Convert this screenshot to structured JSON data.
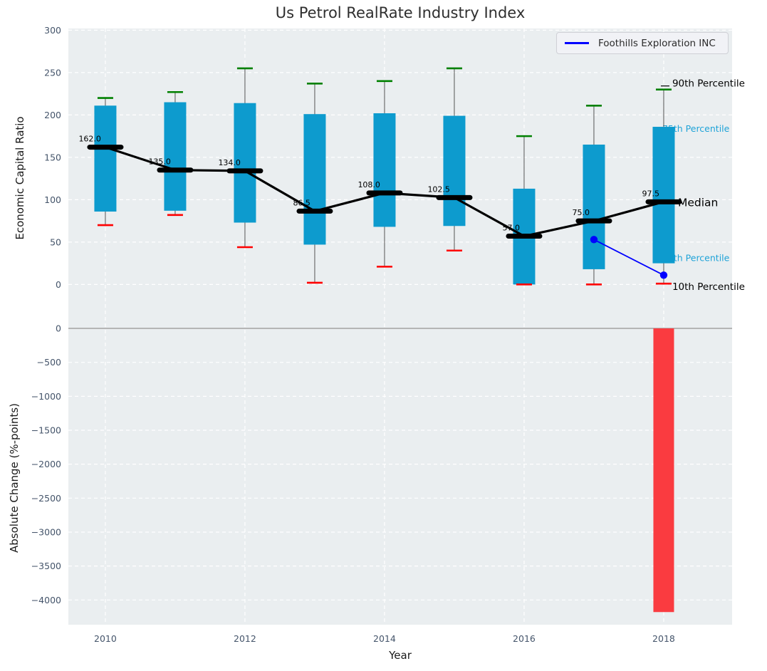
{
  "title": "Us Petrol RealRate Industry Index",
  "legend": {
    "label": "Foothills Exploration INC"
  },
  "chart_data": {
    "type": "box+bar",
    "x": [
      2010,
      2011,
      2012,
      2013,
      2014,
      2015,
      2016,
      2017,
      2018
    ],
    "x_ticks": [
      2010,
      2012,
      2014,
      2016,
      2018
    ],
    "xlabel": "Year",
    "xlim": [
      2009.47,
      2018.98
    ],
    "top_panel": {
      "ylabel": "Economic Capital Ratio",
      "ylim": [
        -35,
        302
      ],
      "y_ticks": [
        0,
        50,
        100,
        150,
        200,
        250,
        300
      ],
      "series": [
        {
          "name": "90th Percentile",
          "values": [
            220,
            227,
            255,
            237,
            240,
            255,
            175,
            211,
            230
          ]
        },
        {
          "name": "75th Percentile",
          "values": [
            211,
            215,
            214,
            201,
            202,
            199,
            113,
            165,
            186
          ]
        },
        {
          "name": "Median",
          "values": [
            162.0,
            135.0,
            134.0,
            86.5,
            108.0,
            102.5,
            57.0,
            75.0,
            97.5
          ]
        },
        {
          "name": "25th Percentile",
          "values": [
            86,
            87,
            73,
            47,
            68,
            69,
            0,
            18,
            25
          ]
        },
        {
          "name": "10th Percentile",
          "values": [
            70,
            82,
            44,
            2,
            21,
            40,
            0,
            0,
            1
          ]
        }
      ],
      "median_value_labels": [
        "162.0",
        "135.0",
        "134.0",
        "86.5",
        "108.0",
        "102.5",
        "57.0",
        "75.0",
        "97.5"
      ],
      "company_line": {
        "name": "Foothills Exploration INC",
        "x": [
          2017,
          2018
        ],
        "y": [
          53,
          11
        ]
      },
      "annotations": [
        {
          "text": "90th Percentile",
          "anchor": "p90",
          "style": "black"
        },
        {
          "text": "75th Percentile",
          "anchor": "p75",
          "style": "cyan"
        },
        {
          "text": "Median",
          "anchor": "median",
          "style": "median"
        },
        {
          "text": "25th Percentile",
          "anchor": "p25",
          "style": "cyan"
        },
        {
          "text": "10th Percentile",
          "anchor": "p10",
          "style": "black"
        }
      ]
    },
    "bottom_panel": {
      "ylabel": "Absolute Change (%-points)",
      "ylim": [
        -4364,
        210
      ],
      "y_ticks": [
        0,
        -500,
        -1000,
        -1500,
        -2000,
        -2500,
        -3000,
        -3500,
        -4000
      ],
      "bars": [
        {
          "x": 2018,
          "value": -4178
        }
      ]
    }
  },
  "colors": {
    "box": "#0d9bce",
    "p90_cap": "#008000",
    "p10_cap": "#ff0000",
    "median": "#000000",
    "company_line": "#0000ff",
    "negative_bar": "#fa3b40",
    "cyan_label": "#1fa3d8",
    "panel_bg": "#eaeef0",
    "grid": "#ffffff",
    "tick_label": "#44546a",
    "zero_line": "#b5b5b5"
  }
}
